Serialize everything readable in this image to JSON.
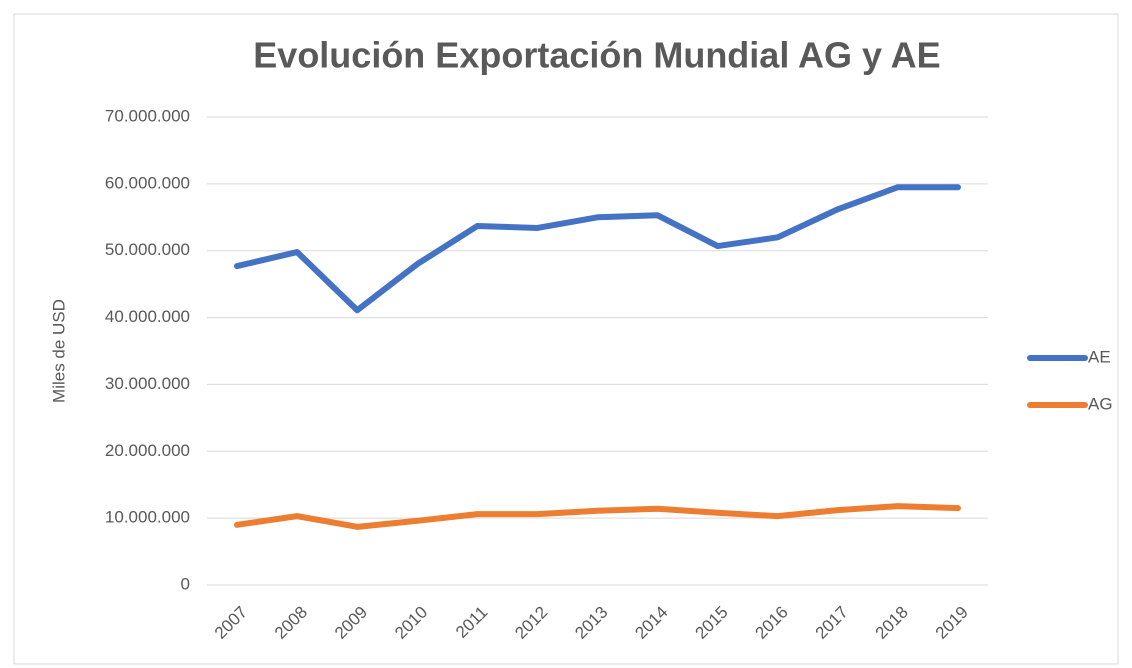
{
  "chart_data": {
    "type": "line",
    "title": "Evolución Exportación Mundial AG y AE",
    "y_label": "Miles de USD",
    "categories": [
      "2007",
      "2008",
      "2009",
      "2010",
      "2011",
      "2012",
      "2013",
      "2014",
      "2015",
      "2016",
      "2017",
      "2018",
      "2019"
    ],
    "series": [
      {
        "name": "AE",
        "color": "#4472c4",
        "values": [
          47700000,
          49800000,
          41100000,
          48000000,
          53700000,
          53400000,
          55000000,
          55300000,
          50700000,
          52000000,
          56200000,
          59500000,
          59500000
        ]
      },
      {
        "name": "AG",
        "color": "#ed7d31",
        "values": [
          9000000,
          10300000,
          8700000,
          9600000,
          10600000,
          10600000,
          11100000,
          11400000,
          10800000,
          10300000,
          11200000,
          11800000,
          11500000
        ]
      }
    ],
    "ylim": [
      0,
      70000000
    ],
    "yticks": [
      0,
      {
        "value": 10000000,
        "label": "10.000.000"
      },
      {
        "value": 20000000,
        "label": "20.000.000"
      },
      {
        "value": 30000000,
        "label": "30.000.000"
      },
      {
        "value": 40000000,
        "label": "40.000.000"
      },
      {
        "value": 50000000,
        "label": "50.000.000"
      },
      {
        "value": 60000000,
        "label": "60.000.000"
      },
      {
        "value": 70000000,
        "label": "70.000.000"
      }
    ],
    "grid": true,
    "legend": "right"
  }
}
